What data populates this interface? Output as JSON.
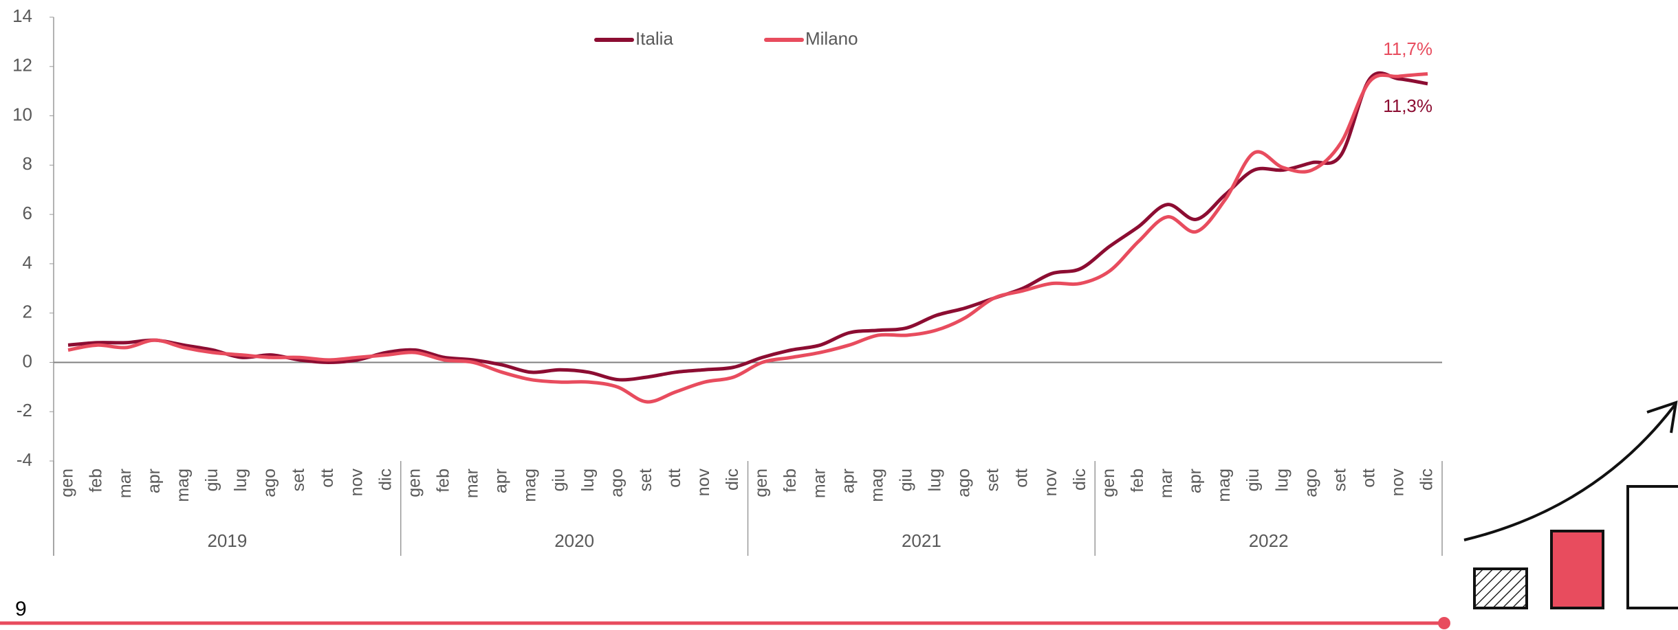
{
  "chart_data": {
    "type": "line",
    "categories": [
      "gen",
      "feb",
      "mar",
      "apr",
      "mag",
      "giu",
      "lug",
      "ago",
      "set",
      "ott",
      "nov",
      "dic",
      "gen",
      "feb",
      "mar",
      "apr",
      "mag",
      "giu",
      "lug",
      "ago",
      "set",
      "ott",
      "nov",
      "dic",
      "gen",
      "feb",
      "mar",
      "apr",
      "mag",
      "giu",
      "lug",
      "ago",
      "set",
      "ott",
      "nov",
      "dic",
      "gen",
      "feb",
      "mar",
      "apr",
      "mag",
      "giu",
      "lug",
      "ago",
      "set",
      "ott",
      "nov",
      "dic"
    ],
    "year_groups": [
      "2019",
      "2020",
      "2021",
      "2022"
    ],
    "series": [
      {
        "name": "Italia",
        "color": "#8c0d32",
        "end_label": "11,3%",
        "values": [
          0.7,
          0.8,
          0.8,
          0.9,
          0.7,
          0.5,
          0.2,
          0.3,
          0.1,
          0.0,
          0.1,
          0.4,
          0.5,
          0.2,
          0.1,
          -0.1,
          -0.4,
          -0.3,
          -0.4,
          -0.7,
          -0.6,
          -0.4,
          -0.3,
          -0.2,
          0.2,
          0.5,
          0.7,
          1.2,
          1.3,
          1.4,
          1.9,
          2.2,
          2.6,
          3.0,
          3.6,
          3.8,
          4.7,
          5.5,
          6.4,
          5.8,
          6.8,
          7.8,
          7.8,
          8.1,
          8.4,
          11.5,
          11.5,
          11.3
        ]
      },
      {
        "name": "Milano",
        "color": "#e84c5e",
        "end_label": "11,7%",
        "values": [
          0.5,
          0.7,
          0.6,
          0.9,
          0.6,
          0.4,
          0.3,
          0.2,
          0.2,
          0.1,
          0.2,
          0.3,
          0.4,
          0.1,
          0.0,
          -0.4,
          -0.7,
          -0.8,
          -0.8,
          -1.0,
          -1.6,
          -1.2,
          -0.8,
          -0.6,
          0.0,
          0.2,
          0.4,
          0.7,
          1.1,
          1.1,
          1.3,
          1.8,
          2.6,
          2.9,
          3.2,
          3.2,
          3.7,
          4.9,
          5.9,
          5.3,
          6.6,
          8.5,
          7.9,
          7.8,
          8.9,
          11.4,
          11.6,
          11.7
        ]
      }
    ],
    "ylim": [
      -4,
      14
    ],
    "yticks": [
      -4,
      -2,
      0,
      2,
      4,
      6,
      8,
      10,
      12,
      14
    ]
  },
  "page_number": "9"
}
